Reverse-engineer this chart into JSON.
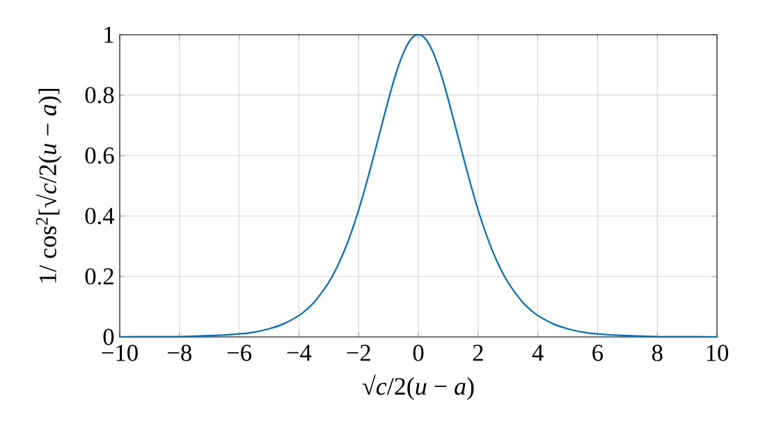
{
  "chart_data": {
    "type": "line",
    "xlabel": "√*c*/2(*u* − *a*)",
    "ylabel": "1/ cos$^{2}$[√*c*/2(*u* − *a*)]",
    "x": [
      -10,
      -9,
      -8,
      -7,
      -6,
      -5.5,
      -5,
      -4.5,
      -4,
      -3.75,
      -3.5,
      -3.25,
      -3,
      -2.75,
      -2.5,
      -2.25,
      -2,
      -1.75,
      -1.5,
      -1.25,
      -1,
      -0.75,
      -0.5,
      -0.25,
      0,
      0.25,
      0.5,
      0.75,
      1,
      1.25,
      1.5,
      1.75,
      2,
      2.25,
      2.5,
      2.75,
      3,
      3.25,
      3.5,
      3.75,
      4,
      4.5,
      5,
      5.5,
      6,
      7,
      8,
      9,
      10
    ],
    "series": [
      {
        "color": "#0072bd",
        "values": [
          0,
          0.001,
          0.001,
          0.004,
          0.01,
          0.016,
          0.027,
          0.044,
          0.071,
          0.09,
          0.114,
          0.145,
          0.181,
          0.226,
          0.28,
          0.345,
          0.42,
          0.505,
          0.597,
          0.692,
          0.786,
          0.872,
          0.94,
          0.985,
          1,
          0.985,
          0.94,
          0.872,
          0.786,
          0.692,
          0.597,
          0.505,
          0.42,
          0.345,
          0.28,
          0.226,
          0.181,
          0.145,
          0.114,
          0.09,
          0.071,
          0.044,
          0.027,
          0.016,
          0.01,
          0.004,
          0.001,
          0.001,
          0
        ]
      }
    ],
    "xlim": [
      -10,
      10
    ],
    "ylim": [
      0,
      1
    ],
    "xticks": [
      {
        "value": -10,
        "label": "−10"
      },
      {
        "value": -8,
        "label": "−8"
      },
      {
        "value": -6,
        "label": "−6"
      },
      {
        "value": -4,
        "label": "−4"
      },
      {
        "value": -2,
        "label": "−2"
      },
      0,
      2,
      4,
      6,
      8,
      10
    ],
    "yticks": [
      0,
      0.2,
      0.4,
      0.6,
      0.8,
      1
    ],
    "grid": true,
    "marker": "none",
    "line_style": "solid"
  }
}
